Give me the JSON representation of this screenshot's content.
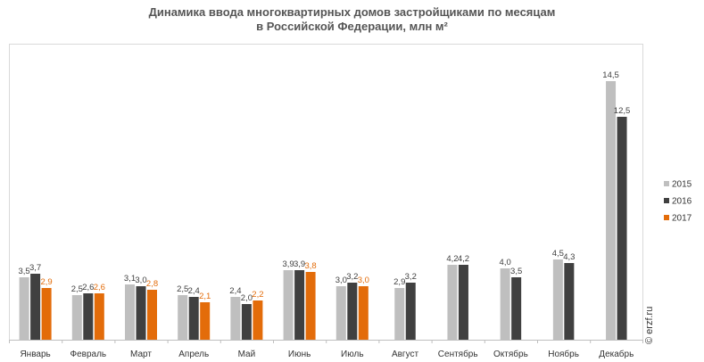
{
  "chart_data": {
    "type": "bar",
    "title": [
      "Динамика ввода многоквартирных домов застройщиками по месяцам",
      "в Российской  Федерации, млн м²"
    ],
    "xlabel": "",
    "ylabel": "",
    "ylim": [
      0,
      16
    ],
    "grid": false,
    "legend_position": "right",
    "categories": [
      "Январь",
      "Февраль",
      "Март",
      "Апрель",
      "Май",
      "Июнь",
      "Июль",
      "Август",
      "Сентябрь",
      "Октябрь",
      "Ноябрь",
      "Декабрь"
    ],
    "series": [
      {
        "name": "2015",
        "color": "#bfbfbf",
        "values": [
          3.5,
          2.5,
          3.1,
          2.5,
          2.4,
          3.9,
          3.0,
          2.9,
          4.2,
          4.0,
          4.5,
          14.5
        ],
        "labels": [
          "3,5",
          "2,5",
          "3,1",
          "2,5",
          "2,4",
          "3,9",
          "3,0",
          "2,9",
          "4,2",
          "4,0",
          "4,5",
          "14,5"
        ]
      },
      {
        "name": "2016",
        "color": "#404040",
        "values": [
          3.7,
          2.6,
          3.0,
          2.4,
          2.0,
          3.9,
          3.2,
          3.2,
          4.2,
          3.5,
          4.3,
          12.5
        ],
        "labels": [
          "3,7",
          "2,6",
          "3,0",
          "2,4",
          "2,0",
          "3,9",
          "3,2",
          "3,2",
          "4,2",
          "3,5",
          "4,3",
          "12,5"
        ]
      },
      {
        "name": "2017",
        "color": "#e36c0a",
        "values": [
          2.9,
          2.6,
          2.8,
          2.1,
          2.2,
          3.8,
          3.0,
          null,
          null,
          null,
          null,
          null
        ],
        "labels": [
          "2,9",
          "2,6",
          "2,8",
          "2,1",
          "2,2",
          "3,8",
          "3,0",
          null,
          null,
          null,
          null,
          null
        ]
      }
    ]
  },
  "watermark": "© erzf.ru",
  "colors": {
    "label_default": "#404040",
    "label_2017": "#e36c0a",
    "axis": "#bfbfbf"
  }
}
